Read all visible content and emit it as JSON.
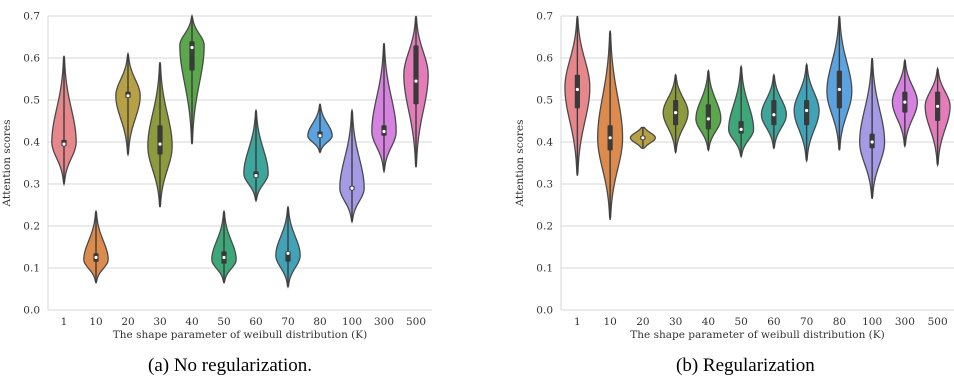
{
  "captions": [
    "(a) No regularization.",
    "(b) Regularization"
  ],
  "chart_data": [
    {
      "type": "violin",
      "xlabel": "The shape parameter of weibull distribution (K)",
      "ylabel": "Attention scores",
      "ylim": [
        0.0,
        0.7
      ],
      "yticks": [
        "0.0",
        "0.1",
        "0.2",
        "0.3",
        "0.4",
        "0.5",
        "0.6",
        "0.7"
      ],
      "grid": "horizontal",
      "categories": [
        "1",
        "10",
        "20",
        "30",
        "40",
        "50",
        "60",
        "70",
        "80",
        "100",
        "300",
        "500"
      ],
      "colors": [
        "#e8878b",
        "#dd8a4d",
        "#b8a144",
        "#8e9b3d",
        "#5aa84b",
        "#3ea77a",
        "#3ea59c",
        "#41a3b8",
        "#5aa3e0",
        "#a59ae6",
        "#d682e0",
        "#e47cba"
      ],
      "violins": [
        {
          "min": 0.3,
          "max": 0.605,
          "median": 0.395,
          "q1": 0.39,
          "q3": 0.405,
          "peak": 0.4
        },
        {
          "min": 0.065,
          "max": 0.235,
          "median": 0.125,
          "q1": 0.115,
          "q3": 0.135,
          "peak": 0.12
        },
        {
          "min": 0.37,
          "max": 0.61,
          "median": 0.51,
          "q1": 0.505,
          "q3": 0.52,
          "peak": 0.51
        },
        {
          "min": 0.245,
          "max": 0.59,
          "median": 0.395,
          "q1": 0.37,
          "q3": 0.44,
          "peak": 0.39
        },
        {
          "min": 0.395,
          "max": 0.7,
          "median": 0.625,
          "q1": 0.57,
          "q3": 0.64,
          "peak": 0.63
        },
        {
          "min": 0.065,
          "max": 0.235,
          "median": 0.125,
          "q1": 0.11,
          "q3": 0.14,
          "peak": 0.12
        },
        {
          "min": 0.26,
          "max": 0.475,
          "median": 0.32,
          "q1": 0.315,
          "q3": 0.33,
          "peak": 0.325
        },
        {
          "min": 0.055,
          "max": 0.245,
          "median": 0.135,
          "q1": 0.115,
          "q3": 0.14,
          "peak": 0.13
        },
        {
          "min": 0.375,
          "max": 0.49,
          "median": 0.415,
          "q1": 0.41,
          "q3": 0.425,
          "peak": 0.415
        },
        {
          "min": 0.21,
          "max": 0.475,
          "median": 0.29,
          "q1": 0.285,
          "q3": 0.295,
          "peak": 0.29
        },
        {
          "min": 0.33,
          "max": 0.635,
          "median": 0.425,
          "q1": 0.415,
          "q3": 0.44,
          "peak": 0.425
        },
        {
          "min": 0.34,
          "max": 0.7,
          "median": 0.545,
          "q1": 0.49,
          "q3": 0.63,
          "peak": 0.56
        }
      ]
    },
    {
      "type": "violin",
      "xlabel": "The shape parameter of weibull distribution (K)",
      "ylabel": "Attention scores",
      "ylim": [
        0.0,
        0.7
      ],
      "yticks": [
        "0.0",
        "0.1",
        "0.2",
        "0.3",
        "0.4",
        "0.5",
        "0.6",
        "0.7"
      ],
      "grid": "horizontal",
      "categories": [
        "1",
        "10",
        "20",
        "30",
        "40",
        "50",
        "60",
        "70",
        "80",
        "100",
        "300",
        "500"
      ],
      "colors": [
        "#e8878b",
        "#dd8a4d",
        "#b8a144",
        "#8e9b3d",
        "#5aa84b",
        "#3ea77a",
        "#3ea59c",
        "#41a3b8",
        "#5aa3e0",
        "#a59ae6",
        "#d682e0",
        "#e47cba"
      ],
      "violins": [
        {
          "min": 0.32,
          "max": 0.7,
          "median": 0.525,
          "q1": 0.48,
          "q3": 0.56,
          "peak": 0.53
        },
        {
          "min": 0.215,
          "max": 0.665,
          "median": 0.41,
          "q1": 0.38,
          "q3": 0.44,
          "peak": 0.41
        },
        {
          "min": 0.385,
          "max": 0.435,
          "median": 0.41,
          "q1": 0.405,
          "q3": 0.415,
          "peak": 0.41
        },
        {
          "min": 0.375,
          "max": 0.56,
          "median": 0.47,
          "q1": 0.44,
          "q3": 0.5,
          "peak": 0.47
        },
        {
          "min": 0.38,
          "max": 0.57,
          "median": 0.455,
          "q1": 0.43,
          "q3": 0.49,
          "peak": 0.455
        },
        {
          "min": 0.365,
          "max": 0.58,
          "median": 0.43,
          "q1": 0.42,
          "q3": 0.45,
          "peak": 0.43
        },
        {
          "min": 0.385,
          "max": 0.56,
          "median": 0.465,
          "q1": 0.44,
          "q3": 0.5,
          "peak": 0.465
        },
        {
          "min": 0.355,
          "max": 0.585,
          "median": 0.475,
          "q1": 0.44,
          "q3": 0.5,
          "peak": 0.475
        },
        {
          "min": 0.38,
          "max": 0.7,
          "median": 0.525,
          "q1": 0.48,
          "q3": 0.57,
          "peak": 0.52
        },
        {
          "min": 0.265,
          "max": 0.6,
          "median": 0.4,
          "q1": 0.385,
          "q3": 0.42,
          "peak": 0.4
        },
        {
          "min": 0.39,
          "max": 0.595,
          "median": 0.495,
          "q1": 0.47,
          "q3": 0.52,
          "peak": 0.495
        },
        {
          "min": 0.345,
          "max": 0.575,
          "median": 0.485,
          "q1": 0.45,
          "q3": 0.52,
          "peak": 0.485
        }
      ]
    }
  ]
}
